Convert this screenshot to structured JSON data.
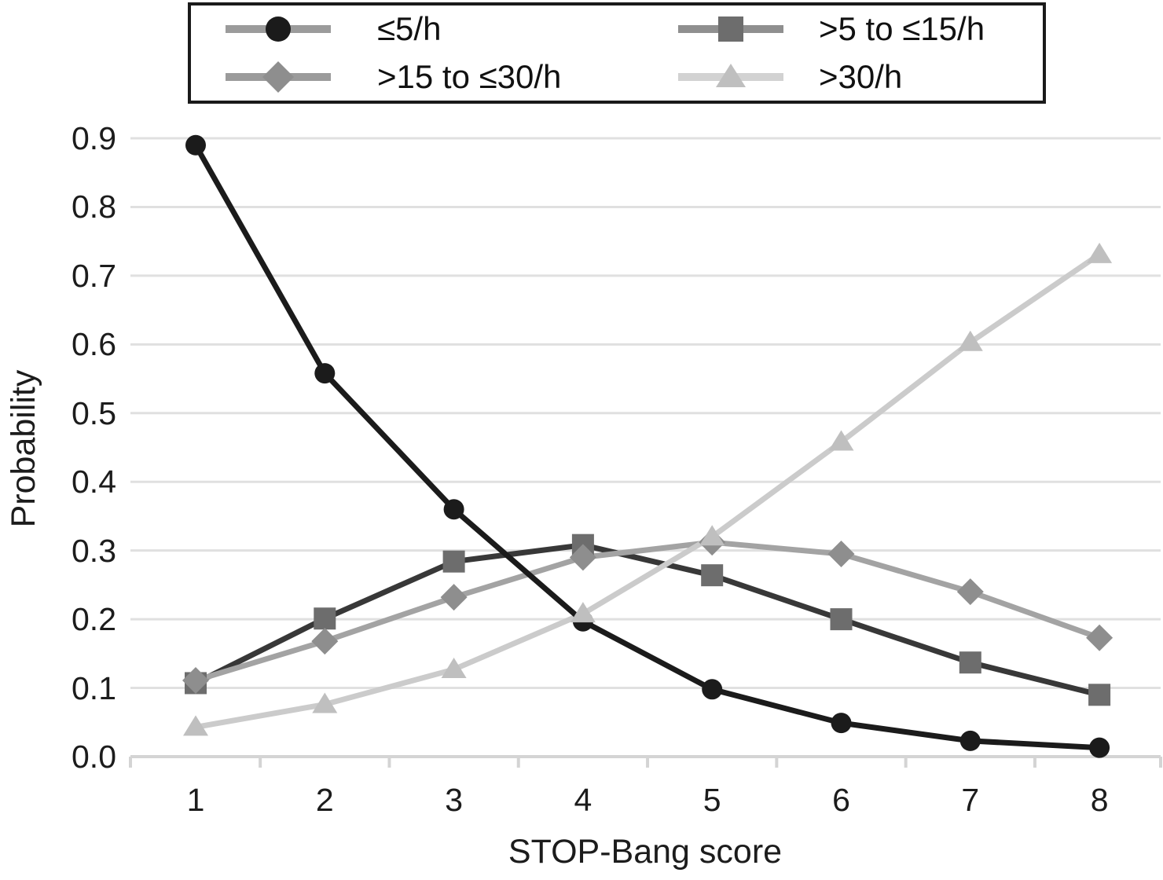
{
  "chart_data": {
    "type": "line",
    "title": "",
    "xlabel": "STOP-Bang score",
    "ylabel": "Probability",
    "x": [
      1,
      2,
      3,
      4,
      5,
      6,
      7,
      8
    ],
    "xlim": [
      0.5,
      8.5
    ],
    "ylim": [
      0.0,
      0.9
    ],
    "yticks": [
      0.0,
      0.1,
      0.2,
      0.3,
      0.4,
      0.5,
      0.6,
      0.7,
      0.8,
      0.9
    ],
    "grid": true,
    "legend_position": "top",
    "series": [
      {
        "name": "≤5/h",
        "marker": "circle",
        "line_color": "#1b1b1b",
        "marker_color": "#1b1b1b",
        "legend_line_color": "#9b9b9b",
        "values": [
          0.89,
          0.558,
          0.36,
          0.197,
          0.098,
          0.049,
          0.023,
          0.013
        ]
      },
      {
        "name": ">5 to ≤15/h",
        "marker": "square",
        "line_color": "#383838",
        "marker_color": "#6d6d6d",
        "legend_line_color": "#8f8f8f",
        "values": [
          0.107,
          0.201,
          0.284,
          0.308,
          0.264,
          0.2,
          0.137,
          0.09
        ]
      },
      {
        "name": ">15 to ≤30/h",
        "marker": "diamond",
        "line_color": "#a3a3a3",
        "marker_color": "#8e8e8e",
        "legend_line_color": "#9b9b9b",
        "values": [
          0.111,
          0.168,
          0.232,
          0.29,
          0.312,
          0.295,
          0.24,
          0.173
        ]
      },
      {
        "name": ">30/h",
        "marker": "triangle",
        "line_color": "#cbcbcb",
        "marker_color": "#bfbfbf",
        "legend_line_color": "#d2d2d2",
        "values": [
          0.043,
          0.076,
          0.127,
          0.208,
          0.32,
          0.458,
          0.603,
          0.731
        ]
      }
    ],
    "colors": {
      "gridline": "#e0e0e0",
      "axis": "#d4d4d4",
      "text": "#1c1c1c",
      "background": "#ffffff",
      "legend_border": "#1a1a1a"
    }
  }
}
